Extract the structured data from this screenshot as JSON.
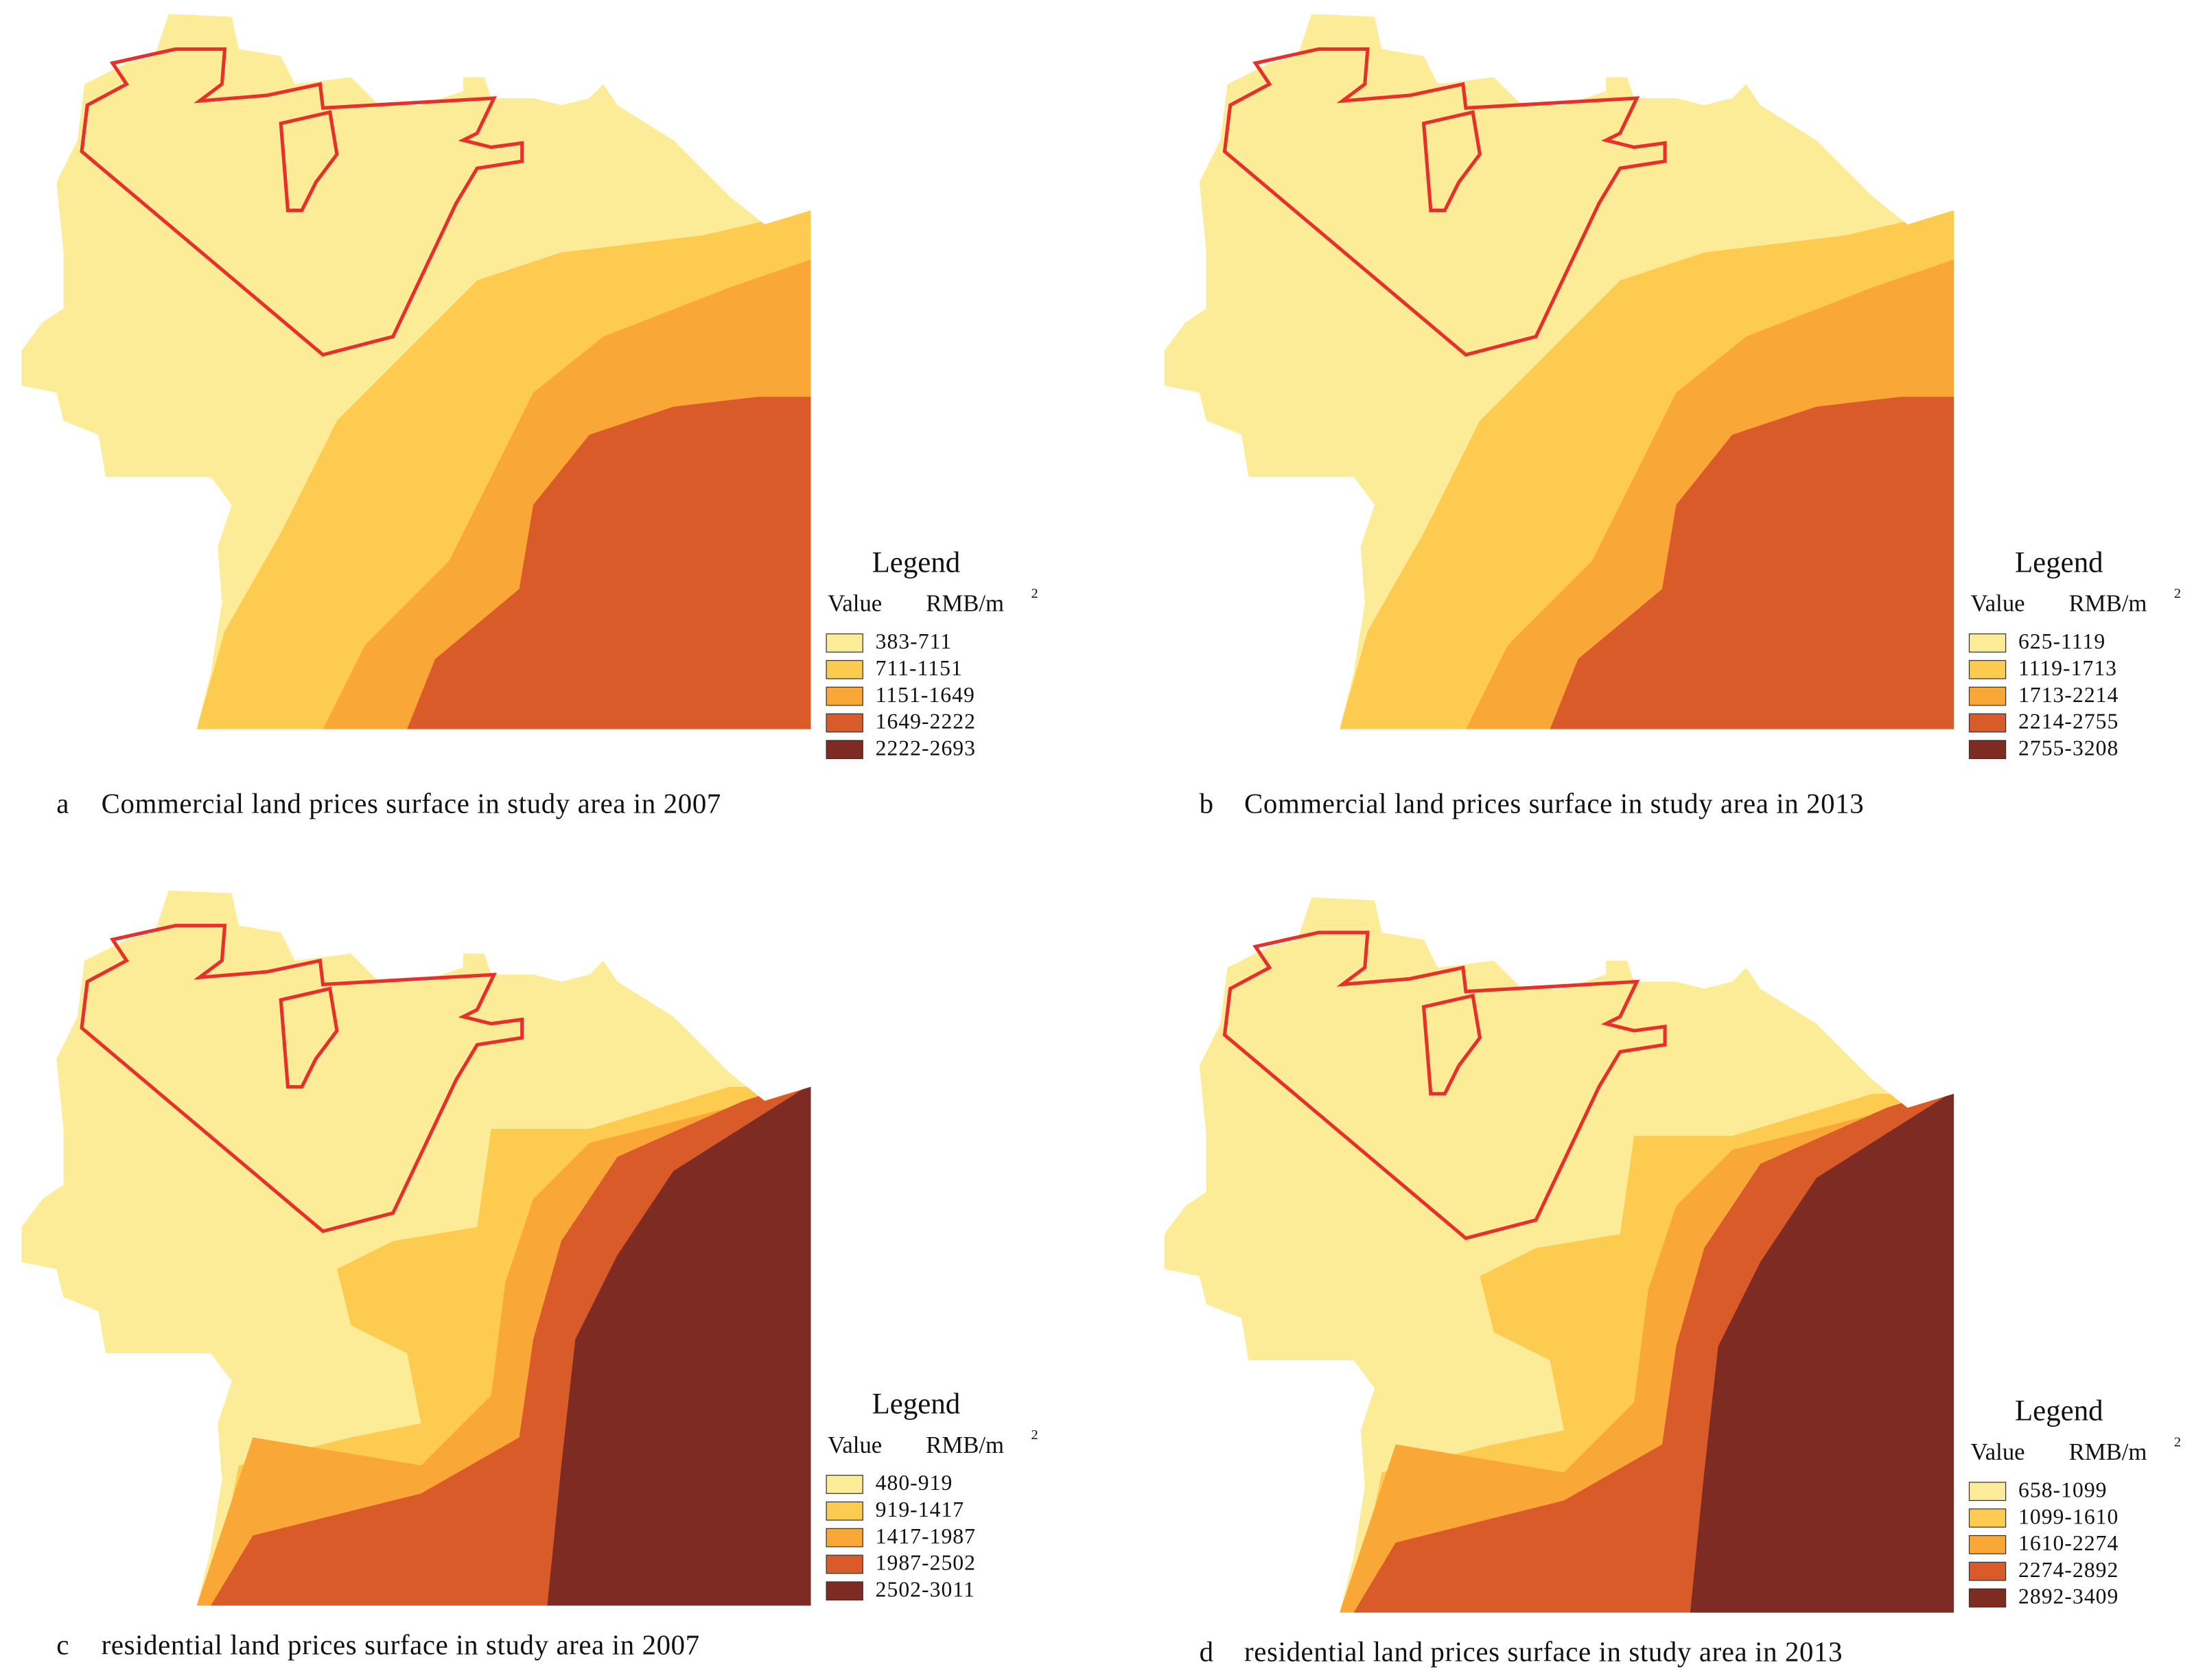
{
  "panels": [
    {
      "caption_letter": "a",
      "caption": "Commercial land prices surface in study area in 2007",
      "legend": {
        "title": "Legend",
        "field": "Value",
        "unit": "RMB/m",
        "unit_superscript": "2",
        "classes": [
          {
            "label": "383-711",
            "color": "#fcec97"
          },
          {
            "label": "711-1151",
            "color": "#fccb4f"
          },
          {
            "label": "1151-1649",
            "color": "#f9a736"
          },
          {
            "label": "1649-2222",
            "color": "#d95b2a"
          },
          {
            "label": "2222-2693",
            "color": "#7d2b23"
          }
        ]
      }
    },
    {
      "caption_letter": "b",
      "caption": "Commercial land prices surface in study area in 2013",
      "legend": {
        "title": "Legend",
        "field": "Value",
        "unit": "RMB/m",
        "unit_superscript": "2",
        "classes": [
          {
            "label": "625-1119",
            "color": "#fcec97"
          },
          {
            "label": "1119-1713",
            "color": "#fccb4f"
          },
          {
            "label": "1713-2214",
            "color": "#f9a736"
          },
          {
            "label": "2214-2755",
            "color": "#d95b2a"
          },
          {
            "label": "2755-3208",
            "color": "#7d2b23"
          }
        ]
      }
    },
    {
      "caption_letter": "c",
      "caption": "residential land prices surface in study area in 2007",
      "legend": {
        "title": "Legend",
        "field": "Value",
        "unit": "RMB/m",
        "unit_superscript": "2",
        "classes": [
          {
            "label": "480-919",
            "color": "#fcec97"
          },
          {
            "label": "919-1417",
            "color": "#fccb4f"
          },
          {
            "label": "1417-1987",
            "color": "#f9a736"
          },
          {
            "label": "1987-2502",
            "color": "#d95b2a"
          },
          {
            "label": "2502-3011",
            "color": "#7d2b23"
          }
        ]
      }
    },
    {
      "caption_letter": "d",
      "caption": "residential land prices surface in study area in 2013",
      "legend": {
        "title": "Legend",
        "field": "Value",
        "unit": "RMB/m",
        "unit_superscript": "2",
        "classes": [
          {
            "label": "658-1099",
            "color": "#fcec97"
          },
          {
            "label": "1099-1610",
            "color": "#fccb4f"
          },
          {
            "label": "1610-2274",
            "color": "#f9a736"
          },
          {
            "label": "2274-2892",
            "color": "#d95b2a"
          },
          {
            "label": "2892-3409",
            "color": "#7d2b23"
          }
        ]
      }
    }
  ]
}
